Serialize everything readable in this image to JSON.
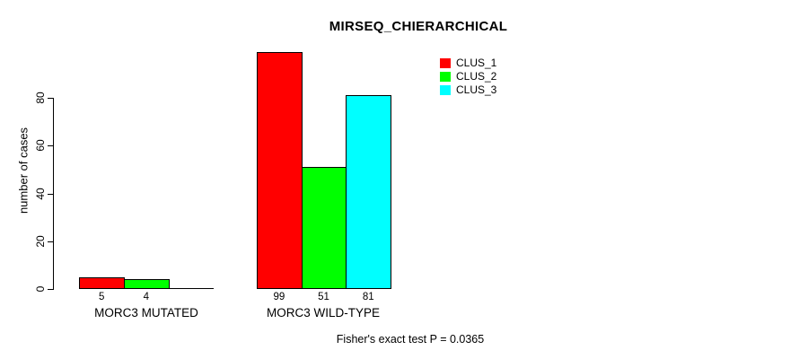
{
  "chart_data": {
    "type": "bar",
    "title": "MIRSEQ_CHIERARCHICAL",
    "ylabel": "number of cases",
    "xlabel": "",
    "yticks": [
      0,
      20,
      40,
      60,
      80
    ],
    "ylim": [
      0,
      105
    ],
    "grid": false,
    "legend_position": "top-right",
    "series": [
      {
        "name": "CLUS_1",
        "color": "#ff0000"
      },
      {
        "name": "CLUS_2",
        "color": "#00ff00"
      },
      {
        "name": "CLUS_3",
        "color": "#00ffff"
      }
    ],
    "groups": [
      {
        "label": "MORC3 MUTATED",
        "values": [
          5,
          4,
          0
        ],
        "value_labels": [
          "5",
          "4",
          ""
        ]
      },
      {
        "label": "MORC3 WILD-TYPE",
        "values": [
          99,
          51,
          81
        ],
        "value_labels": [
          "99",
          "51",
          "81"
        ]
      }
    ],
    "footnote": "Fisher's exact test P = 0.0365"
  }
}
